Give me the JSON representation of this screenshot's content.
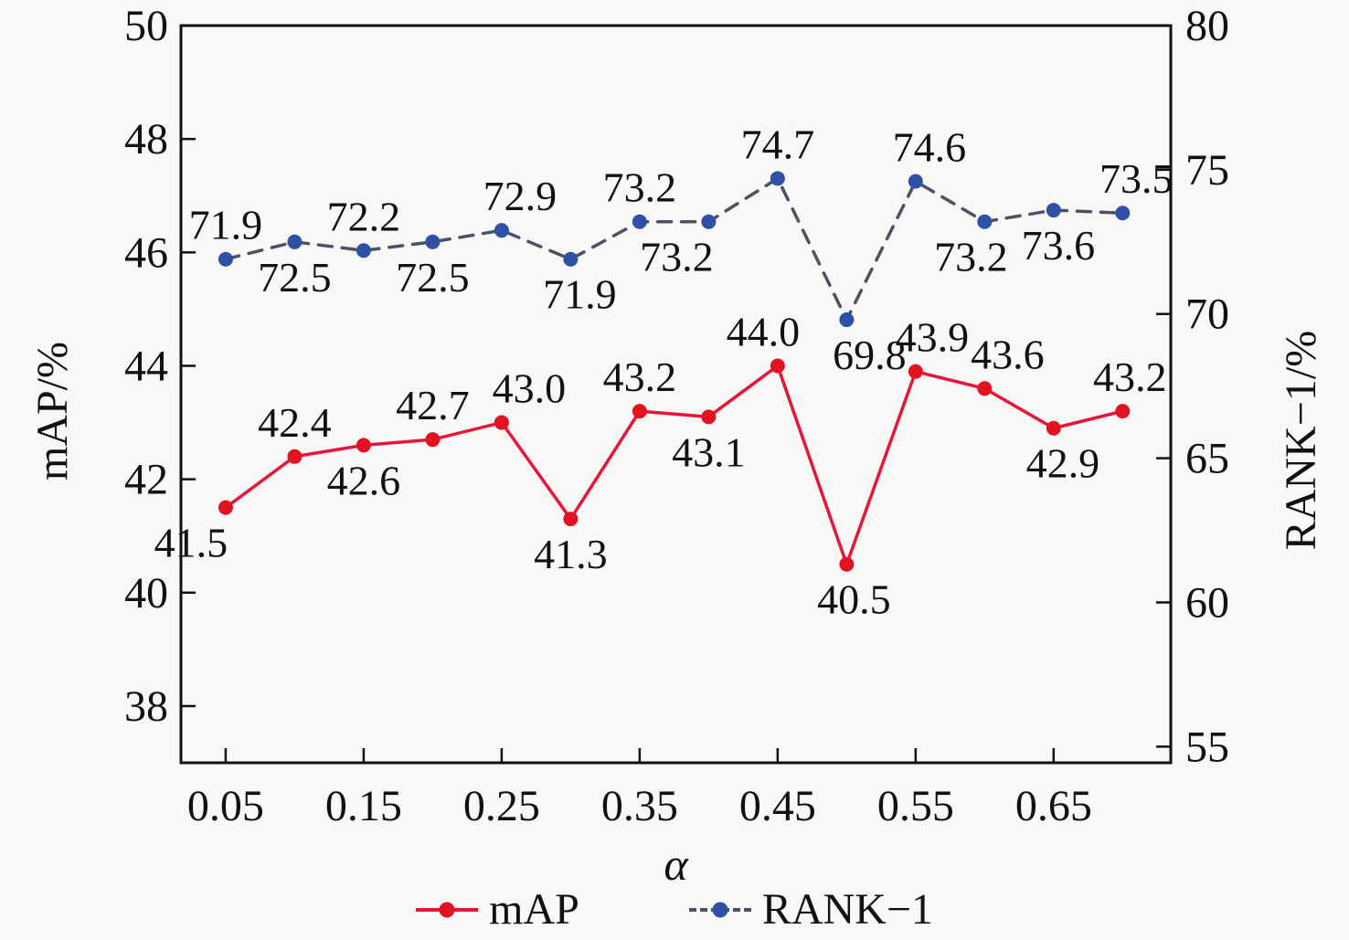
{
  "figure": {
    "background": "#f8f8f7",
    "text_color": "#111111",
    "spine_color": "#111111"
  },
  "chart_data": {
    "type": "line",
    "title": "",
    "xlabel": "α",
    "x": [
      0.05,
      0.1,
      0.15,
      0.2,
      0.25,
      0.3,
      0.35,
      0.4,
      0.45,
      0.5,
      0.55,
      0.6,
      0.65,
      0.7
    ],
    "x_ticks": [
      0.05,
      0.15,
      0.25,
      0.35,
      0.45,
      0.55,
      0.65
    ],
    "xlim": [
      0.0176,
      0.7349
    ],
    "grid": false,
    "series": [
      {
        "name": "mAP",
        "axis": "left",
        "line_style": "solid",
        "line_color": "#e4173a",
        "marker_color": "#e31220",
        "values": [
          41.5,
          42.4,
          42.6,
          42.7,
          43.0,
          41.3,
          43.2,
          43.1,
          44.0,
          40.5,
          43.9,
          43.6,
          42.9,
          43.2
        ],
        "label_side": [
          "below",
          "above",
          "below",
          "above",
          "above",
          "below",
          "above",
          "below",
          "above",
          "below",
          "above",
          "above",
          "below",
          "above"
        ],
        "label_dx": [
          -38,
          0,
          0,
          0,
          30,
          0,
          0,
          0,
          -16,
          8,
          18,
          25,
          10,
          8
        ]
      },
      {
        "name": "RANK−1",
        "axis": "right",
        "line_style": "dashed",
        "line_color": "#4d5263",
        "marker_color": "#3050a5",
        "values": [
          71.9,
          72.5,
          72.2,
          72.5,
          72.9,
          71.9,
          73.2,
          73.2,
          74.7,
          69.8,
          74.6,
          73.2,
          73.6,
          73.5
        ],
        "label_side": [
          "above",
          "below",
          "above",
          "below",
          "above",
          "below",
          "above",
          "below",
          "above",
          "below",
          "above",
          "below",
          "below",
          "above"
        ],
        "label_dx": [
          0,
          0,
          0,
          0,
          20,
          10,
          0,
          -35,
          0,
          25,
          15,
          -15,
          5,
          15
        ]
      }
    ],
    "left_axis": {
      "label": "mAP/%",
      "ticks": [
        38,
        40,
        42,
        44,
        46,
        48,
        50
      ],
      "ylim": [
        37.0,
        50.0
      ]
    },
    "right_axis": {
      "label": "RANK−1/%",
      "ticks": [
        55,
        60,
        65,
        70,
        75,
        80
      ],
      "ylim": [
        54.44,
        80.0
      ]
    },
    "legend": {
      "position": "bottom",
      "entries": [
        "mAP",
        "RANK−1"
      ]
    }
  }
}
